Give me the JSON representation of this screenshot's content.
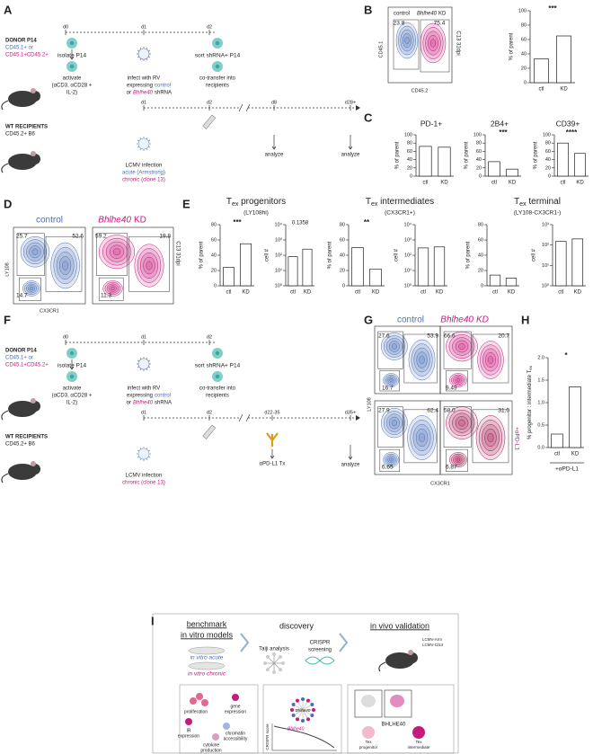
{
  "A": {
    "labels": [
      "A",
      "DONOR P14",
      "CD45.1+ or",
      "CD45.1+CD45.2+",
      "d0",
      "d1",
      "d2",
      "isolate P14",
      "activate",
      "(αCD3, αCD28 +",
      "IL-2)",
      "infect with RV",
      "expressing",
      "control",
      "or",
      "Bhlhe40",
      "shRNA",
      "sort shRNA+ P14",
      "co-transfer into",
      "recipients",
      "WT RECIPIENTS",
      "CD45.2+ B6",
      "d1",
      "d2",
      "d8",
      "d28+",
      "LCMV infection",
      "acute (Armstrong)",
      "chronic (clone 13)",
      "analyze",
      "analyze"
    ]
  },
  "B": {
    "labels": [
      "B",
      "control",
      "Bhlhe40",
      "KD",
      "23.8",
      "75.4",
      "CD45.1",
      "CD45.2",
      "C13 31dpi"
    ],
    "plot": {
      "ylabel": "% of parent",
      "sig": "***",
      "ylim": [
        0,
        100
      ],
      "yticks": [
        0,
        20,
        40,
        60,
        80,
        100
      ],
      "categories": [
        "ctl",
        "KD"
      ],
      "values": [
        33,
        65
      ]
    }
  },
  "C": {
    "letter": "C",
    "plots": [
      {
        "title": "PD-1+",
        "ylabel": "% of parent",
        "ylim": [
          0,
          100
        ],
        "yticks": [
          0,
          20,
          40,
          60,
          80,
          100
        ],
        "categories": [
          "ctl",
          "KD"
        ],
        "values": [
          72,
          70
        ]
      },
      {
        "title": "2B4+",
        "sig": "***",
        "ylabel": "% of parent",
        "ylim": [
          0,
          100
        ],
        "yticks": [
          0,
          20,
          40,
          60,
          80,
          100
        ],
        "categories": [
          "ctl",
          "KD"
        ],
        "values": [
          35,
          17
        ]
      },
      {
        "title": "CD39+",
        "sig": "****",
        "ylabel": "% of parent",
        "ylim": [
          0,
          100
        ],
        "yticks": [
          0,
          20,
          40,
          60,
          80,
          100
        ],
        "categories": [
          "ctl",
          "KD"
        ],
        "values": [
          80,
          55
        ]
      }
    ]
  },
  "D": {
    "labels": [
      "D",
      "control",
      "Bhlhe40",
      "KD",
      "25.7",
      "52.6",
      "14.7",
      "59.2",
      "19.8",
      "11.3",
      "LY108",
      "CX3CR1",
      "C13 31dpi"
    ]
  },
  "E": {
    "letter": "E",
    "groups": [
      {
        "title": {
          "main": "T",
          "sub": "ex",
          "rest": " progenitors"
        },
        "subtitle": "(LY108hi)"
      },
      {
        "title": {
          "main": "T",
          "sub": "ex",
          "rest": " intermediates"
        },
        "subtitle": "(CX3CR1+)"
      },
      {
        "title": {
          "main": "T",
          "sub": "ex",
          "rest": " terminal"
        },
        "subtitle": "(LY108-CX3CR1-)"
      }
    ],
    "plots": [
      {
        "sig": "***",
        "ylabel": "% of parent",
        "ylim": [
          0,
          80
        ],
        "yticks": [
          0,
          20,
          40,
          60,
          80
        ],
        "categories": [
          "ctl",
          "KD"
        ],
        "values": [
          24,
          55
        ]
      },
      {
        "sig": "0.1358",
        "ylabel": "cell #",
        "log": true,
        "ylim": [
          1,
          10000
        ],
        "yticks": [
          {
            "value": 1,
            "label": "10⁰"
          },
          {
            "value": 10,
            "label": "10¹"
          },
          {
            "value": 100,
            "label": "10²"
          },
          {
            "value": 1000,
            "label": "10³"
          },
          {
            "value": 10000,
            "label": "10⁴"
          }
        ],
        "categories": [
          "ctl",
          "KD"
        ],
        "values": [
          80,
          250
        ]
      },
      {
        "sig": "**",
        "ylabel": "% of parent",
        "ylim": [
          0,
          80
        ],
        "yticks": [
          0,
          20,
          40,
          60,
          80
        ],
        "categories": [
          "ctl",
          "KD"
        ],
        "values": [
          50,
          22
        ]
      },
      {
        "ylabel": "cell #",
        "log": true,
        "ylim": [
          1,
          10000
        ],
        "yticks": [
          {
            "value": 1,
            "label": "10⁰"
          },
          {
            "value": 10,
            "label": "10¹"
          },
          {
            "value": 100,
            "label": "10²"
          },
          {
            "value": 1000,
            "label": "10³"
          },
          {
            "value": 10000,
            "label": "10⁴"
          }
        ],
        "categories": [
          "ctl",
          "KD"
        ],
        "values": [
          300,
          350
        ]
      },
      {
        "ylabel": "% of parent",
        "ylim": [
          0,
          80
        ],
        "yticks": [
          0,
          20,
          40,
          60,
          80
        ],
        "categories": [
          "ctl",
          "KD"
        ],
        "values": [
          14,
          10
        ]
      },
      {
        "ylabel": "cell #",
        "log": true,
        "ylim": [
          1,
          1000
        ],
        "yticks": [
          {
            "value": 1,
            "label": "10⁰"
          },
          {
            "value": 10,
            "label": "10¹"
          },
          {
            "value": 100,
            "label": "10²"
          },
          {
            "value": 1000,
            "label": "10³"
          }
        ],
        "categories": [
          "ctl",
          "KD"
        ],
        "values": [
          150,
          200
        ]
      }
    ]
  },
  "F": {
    "labels": [
      "F",
      "DONOR P14",
      "CD45.1+ or",
      "CD45.1+CD45.2+",
      "d0",
      "d1",
      "d2",
      "isolate P14",
      "activate",
      "(αCD3, αCD28 +",
      "IL-2)",
      "infect with RV",
      "expressing",
      "control",
      "or",
      "Bhlhe40",
      "shRNA",
      "sort shRNA+ P14",
      "co-transfer into",
      "recipients",
      "WT RECIPIENTS",
      "CD45.2+ B6",
      "d1",
      "d2",
      "d22-35",
      "d35+",
      "LCMV infection",
      "chronic (clone 13)",
      "αPD-L1 Tx",
      "analyze"
    ]
  },
  "G": {
    "labels": [
      "G",
      "control",
      "Bhlhe40",
      "KD",
      "27.6",
      "53.9",
      "16.7",
      "66.6",
      "20.7",
      "9.49",
      "27.9",
      "62.4",
      "6.65",
      "58.0",
      "31.0",
      "6.87",
      "+αPD-L1",
      "LY108",
      "CX3CR1"
    ]
  },
  "H": {
    "letter": "H",
    "ylabel": {
      "main": "% progenitor : intermediate T",
      "sub": "ex"
    },
    "note": "+αPD-L1",
    "plot": {
      "sig": "*",
      "ylim": [
        0,
        2
      ],
      "yticks": [
        {
          "value": 0,
          "label": "0.0"
        },
        0.5,
        {
          "value": 1,
          "label": "1.0"
        },
        1.5,
        {
          "value": 2,
          "label": "2.0"
        }
      ],
      "categories": [
        "ctl",
        "KD"
      ],
      "values": [
        0.3,
        1.35
      ]
    }
  },
  "I": {
    "labels": [
      "I",
      "benchmark",
      "in vitro models",
      "in vitro acute",
      "in vitro chronic",
      "discovery",
      "Taiji analysis",
      "CRISPR",
      "screening",
      "in vivo validation",
      "LCMV-Arm",
      "LCMV-Cl13",
      "proliferation",
      "gene",
      "expression",
      "IR",
      "expression",
      "chromatin",
      "accessibility",
      "cytokine",
      "production",
      "Bhlhe40",
      "CRISPR score",
      "Bhlhe40",
      "BHLHE40",
      "Tex",
      "progenitor",
      "Tex",
      "intermediate"
    ]
  }
}
